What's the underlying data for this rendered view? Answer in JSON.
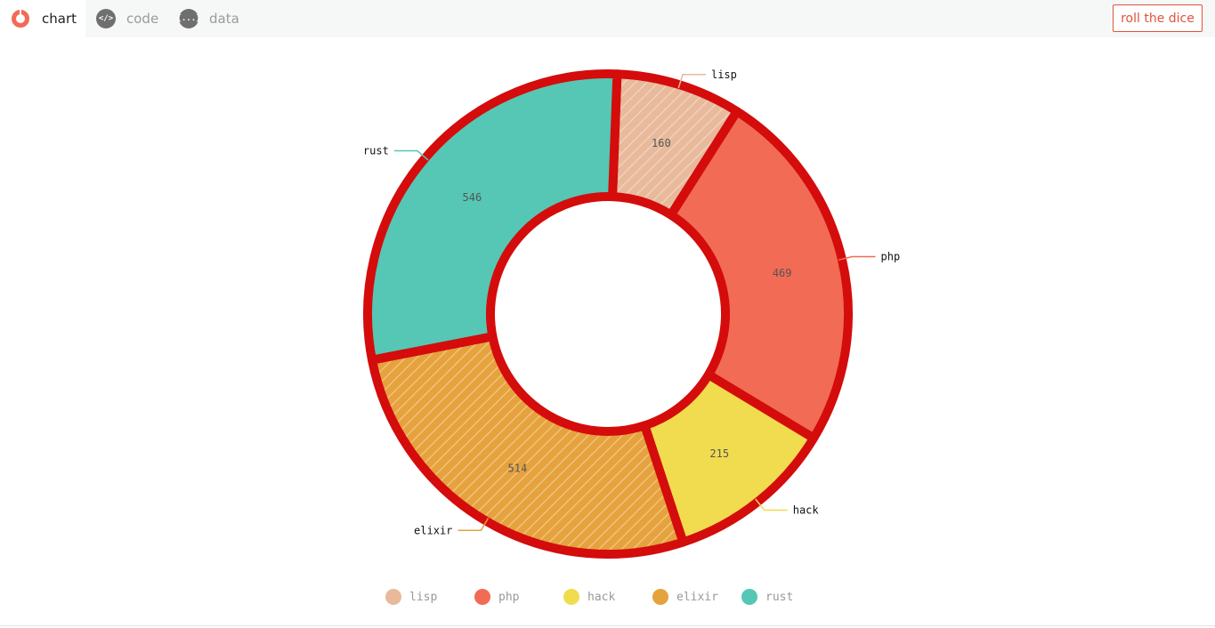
{
  "toolbar": {
    "tabs": [
      {
        "label": "chart",
        "icon": "donut-icon"
      },
      {
        "label": "code",
        "icon": "code-icon",
        "glyph": "</>"
      },
      {
        "label": "data",
        "icon": "braces-icon",
        "glyph": "{...}"
      }
    ],
    "dice_label": "roll the dice"
  },
  "colors": {
    "accent": "#e0533d",
    "stroke": "#d40c0c"
  },
  "chart_data": {
    "type": "pie",
    "subtype": "donut",
    "title": "",
    "categories": [
      "lisp",
      "php",
      "hack",
      "elixir",
      "rust"
    ],
    "values": [
      160,
      469,
      215,
      514,
      546
    ],
    "colors": [
      "#e8b99a",
      "#f26b55",
      "#f0dc4e",
      "#e6a23c",
      "#55c7b4"
    ],
    "hatched": [
      true,
      false,
      false,
      true,
      false
    ],
    "data_labels": [
      "160",
      "469",
      "215",
      "514",
      "546"
    ],
    "legend": {
      "position": "bottom",
      "entries": [
        "lisp",
        "php",
        "hack",
        "elixir",
        "rust"
      ]
    }
  }
}
